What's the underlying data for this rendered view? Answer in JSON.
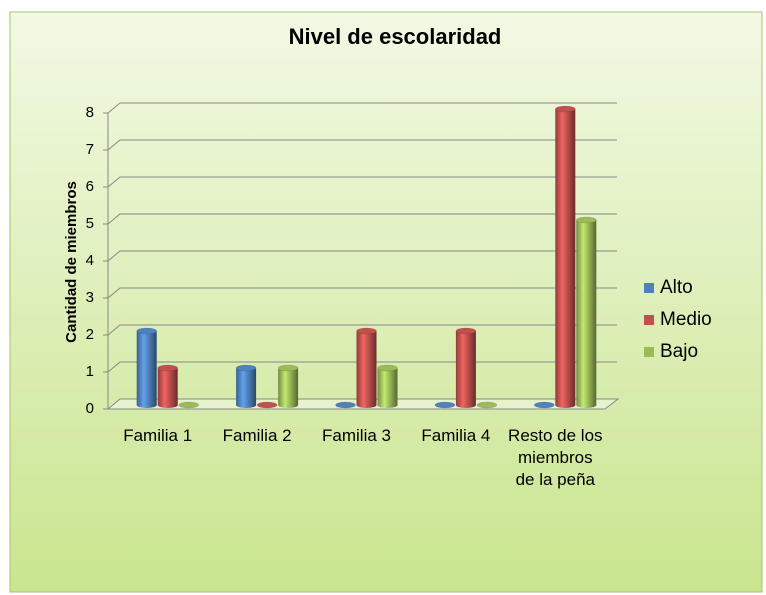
{
  "chart_data": {
    "type": "bar3d",
    "title": "Nivel de escolaridad",
    "y_label": "Cantidad de miembros",
    "categories": [
      "Familia 1",
      "Familia 2",
      "Familia 3",
      "Familia 4",
      "Resto de los miembros de la peña"
    ],
    "series": [
      {
        "name": "Alto",
        "color": "#4f81bd",
        "values": [
          2,
          1,
          0,
          0,
          0
        ]
      },
      {
        "name": "Medio",
        "color": "#c0504d",
        "values": [
          1,
          0,
          2,
          2,
          8
        ]
      },
      {
        "name": "Bajo",
        "color": "#9bbb59",
        "values": [
          0,
          1,
          1,
          0,
          5
        ]
      }
    ],
    "ylim": [
      0,
      8
    ],
    "yticks": [
      0,
      1,
      2,
      3,
      4,
      5,
      6,
      7,
      8
    ],
    "grid": true,
    "legend": "right"
  }
}
